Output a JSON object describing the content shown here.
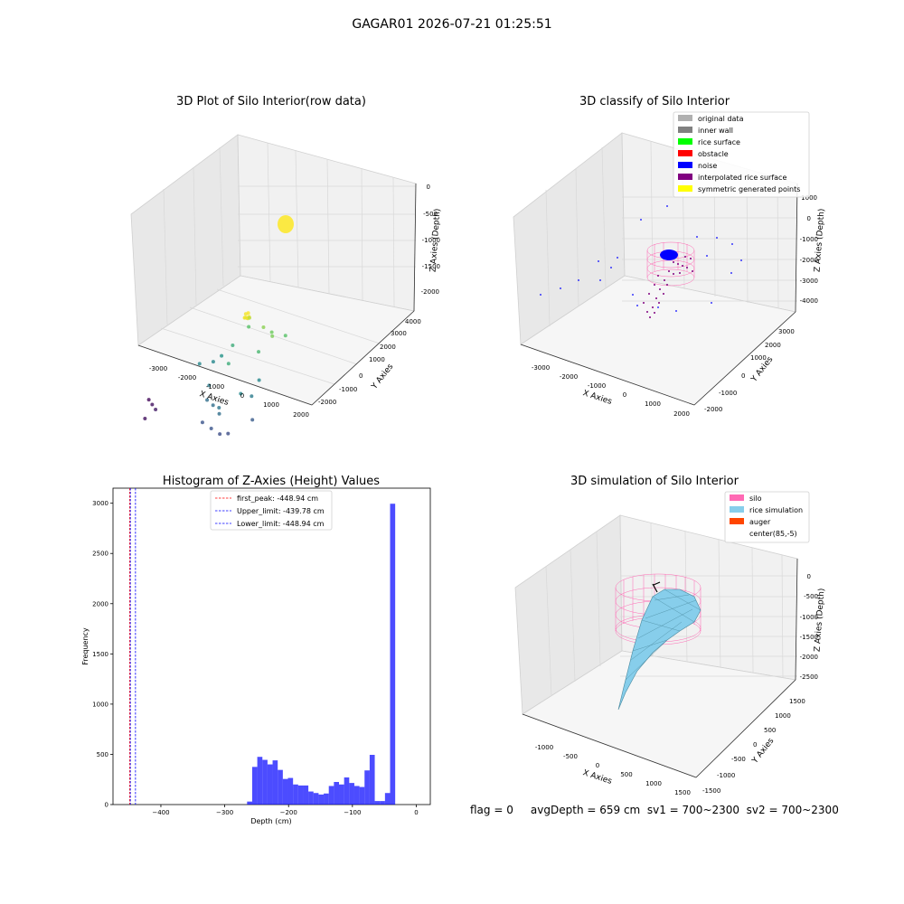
{
  "suptitle": "GAGAR01 2026-07-21 01:25:51",
  "footer": "flag = 0     avgDepth = 659 cm  sv1 = 700~2300  sv2 = 700~2300",
  "chart_data": [
    {
      "type": "scatter",
      "projection": "3d",
      "title": "3D Plot of Silo Interior(row data)",
      "xlabel": "X Axies",
      "ylabel": "Y Axies",
      "zlabel": "Z Axies (Depth)",
      "x_ticks": [
        "-3000",
        "-2000",
        "-1000",
        "0",
        "1000",
        "2000"
      ],
      "y_ticks": [
        "-2000",
        "-1000",
        "0",
        "1000",
        "2000",
        "3000",
        "4000"
      ],
      "z_ticks": [
        "0",
        "-500",
        "-1000",
        "-1500",
        "-2000"
      ],
      "colormap": "viridis",
      "points": [
        {
          "x": -150,
          "y": 300,
          "z": -280
        },
        {
          "x": -120,
          "y": 250,
          "z": -320
        },
        {
          "x": -100,
          "y": 200,
          "z": -300
        },
        {
          "x": -80,
          "y": 320,
          "z": -260
        },
        {
          "x": -60,
          "y": 280,
          "z": -340
        },
        {
          "x": -40,
          "y": 220,
          "z": -300
        },
        {
          "x": 0,
          "y": 260,
          "z": -290
        },
        {
          "x": -200,
          "y": 500,
          "z": -450
        },
        {
          "x": 200,
          "y": 600,
          "z": -600
        },
        {
          "x": 400,
          "y": 700,
          "z": -700
        },
        {
          "x": 700,
          "y": 900,
          "z": -800
        },
        {
          "x": 600,
          "y": 500,
          "z": -650
        },
        {
          "x": -500,
          "y": 800,
          "z": -800
        },
        {
          "x": -700,
          "y": 400,
          "z": -1000
        },
        {
          "x": -300,
          "y": -200,
          "z": -1000
        },
        {
          "x": 300,
          "y": 300,
          "z": -900
        },
        {
          "x": -1000,
          "y": 300,
          "z": -1200
        },
        {
          "x": -1200,
          "y": 200,
          "z": -1300
        },
        {
          "x": -1500,
          "y": 0,
          "z": -1300
        },
        {
          "x": 500,
          "y": 100,
          "z": -1300
        },
        {
          "x": 600,
          "y": -300,
          "z": -1400
        },
        {
          "x": 400,
          "y": -500,
          "z": -1300
        },
        {
          "x": -800,
          "y": -400,
          "z": -1400
        },
        {
          "x": -600,
          "y": -700,
          "z": -1500
        },
        {
          "x": -300,
          "y": -800,
          "z": -1500
        },
        {
          "x": 0,
          "y": -900,
          "z": -1450
        },
        {
          "x": 100,
          "y": -1000,
          "z": -1500
        },
        {
          "x": -400,
          "y": -1100,
          "z": -1700
        },
        {
          "x": 0,
          "y": -1200,
          "z": -1700
        },
        {
          "x": 300,
          "y": -1200,
          "z": -1750
        },
        {
          "x": 500,
          "y": -1100,
          "z": -1750
        },
        {
          "x": 900,
          "y": -600,
          "z": -1650
        },
        {
          "x": -2500,
          "y": -600,
          "z": -2050
        },
        {
          "x": -2600,
          "y": -900,
          "z": -2100
        },
        {
          "x": -2800,
          "y": -400,
          "z": -2100
        },
        {
          "x": -3100,
          "y": -200,
          "z": -2150
        }
      ]
    },
    {
      "type": "scatter",
      "projection": "3d",
      "title": "3D classify of Silo Interior",
      "xlabel": "X Axies",
      "ylabel": "Y Axies",
      "zlabel": "Z Axies (Depth)",
      "x_ticks": [
        "-3000",
        "-2000",
        "-1000",
        "0",
        "1000",
        "2000"
      ],
      "y_ticks": [
        "-2000",
        "-1000",
        "0",
        "1000",
        "2000",
        "3000"
      ],
      "z_ticks": [
        "1000",
        "0",
        "-1000",
        "-2000",
        "-3000",
        "-4000"
      ],
      "legend_position": "top-right",
      "legend": [
        {
          "label": "original data",
          "color": "#b0b0b0"
        },
        {
          "label": "inner wall",
          "color": "#808080"
        },
        {
          "label": "rice surface",
          "color": "#00ff00"
        },
        {
          "label": "obstacle",
          "color": "#ff0000"
        },
        {
          "label": "noise",
          "color": "#0000ff"
        },
        {
          "label": "interpolated rice surface",
          "color": "#800080"
        },
        {
          "label": "symmetric generated points",
          "color": "#ffff00"
        }
      ]
    },
    {
      "type": "bar",
      "title": "Histogram of Z-Axies (Height) Values",
      "xlabel": "Depth (cm)",
      "ylabel": "Frequency",
      "xlim": [
        -475,
        22
      ],
      "ylim": [
        0,
        3150
      ],
      "x_ticks": [
        -400,
        -300,
        -200,
        -100,
        0
      ],
      "y_ticks": [
        0,
        500,
        1000,
        1500,
        2000,
        2500,
        3000
      ],
      "bar_color": "#0000ff",
      "bins": [
        {
          "left": -265,
          "right": -257,
          "count": 30
        },
        {
          "left": -257,
          "right": -249,
          "count": 375
        },
        {
          "left": -249,
          "right": -241,
          "count": 475
        },
        {
          "left": -241,
          "right": -233,
          "count": 445
        },
        {
          "left": -233,
          "right": -225,
          "count": 400
        },
        {
          "left": -225,
          "right": -217,
          "count": 440
        },
        {
          "left": -217,
          "right": -209,
          "count": 345
        },
        {
          "left": -209,
          "right": -201,
          "count": 255
        },
        {
          "left": -201,
          "right": -193,
          "count": 265
        },
        {
          "left": -193,
          "right": -185,
          "count": 200
        },
        {
          "left": -185,
          "right": -177,
          "count": 190
        },
        {
          "left": -177,
          "right": -169,
          "count": 190
        },
        {
          "left": -169,
          "right": -161,
          "count": 130
        },
        {
          "left": -161,
          "right": -153,
          "count": 115
        },
        {
          "left": -153,
          "right": -145,
          "count": 100
        },
        {
          "left": -145,
          "right": -137,
          "count": 110
        },
        {
          "left": -137,
          "right": -129,
          "count": 185
        },
        {
          "left": -129,
          "right": -121,
          "count": 225
        },
        {
          "left": -121,
          "right": -113,
          "count": 200
        },
        {
          "left": -113,
          "right": -105,
          "count": 270
        },
        {
          "left": -105,
          "right": -97,
          "count": 215
        },
        {
          "left": -97,
          "right": -89,
          "count": 185
        },
        {
          "left": -89,
          "right": -81,
          "count": 175
        },
        {
          "left": -81,
          "right": -73,
          "count": 340
        },
        {
          "left": -73,
          "right": -65,
          "count": 495
        },
        {
          "left": -65,
          "right": -57,
          "count": 35
        },
        {
          "left": -57,
          "right": -49,
          "count": 35
        },
        {
          "left": -49,
          "right": -41,
          "count": 115
        },
        {
          "left": -41,
          "right": -33,
          "count": 2995
        },
        {
          "left": -33,
          "right": -25,
          "count": 0
        }
      ],
      "vlines": [
        {
          "label": "first_peak: -448.94 cm",
          "x": -448.94,
          "color": "#ff0000",
          "style": "dashed"
        },
        {
          "label": "Upper_limit: -439.78 cm",
          "x": -439.78,
          "color": "#0000ff",
          "style": "dashed"
        },
        {
          "label": "Lower_limit: -448.94 cm",
          "x": -448.94,
          "color": "#0000ff",
          "style": "dashed"
        }
      ],
      "legend_position": "top-center"
    },
    {
      "type": "surface",
      "projection": "3d",
      "title": "3D simulation of Silo Interior",
      "xlabel": "X Axies",
      "ylabel": "Y Axies",
      "zlabel": "Z Axies (Depth)",
      "x_ticks": [
        "-1000",
        "-500",
        "0",
        "500",
        "1000",
        "1500"
      ],
      "y_ticks": [
        "-1500",
        "-1000",
        "-500",
        "0",
        "500",
        "1000",
        "1500"
      ],
      "z_ticks": [
        "0",
        "-500",
        "-1000",
        "-1500",
        "-2000",
        "-2500"
      ],
      "legend_position": "top-right",
      "legend": [
        {
          "label": "silo",
          "color": "#ff69b4"
        },
        {
          "label": "rice simulation",
          "color": "#87ceeb"
        },
        {
          "label": "auger",
          "color": "#ff4500"
        },
        {
          "label": "center(85,-5)",
          "color": ""
        }
      ]
    }
  ]
}
